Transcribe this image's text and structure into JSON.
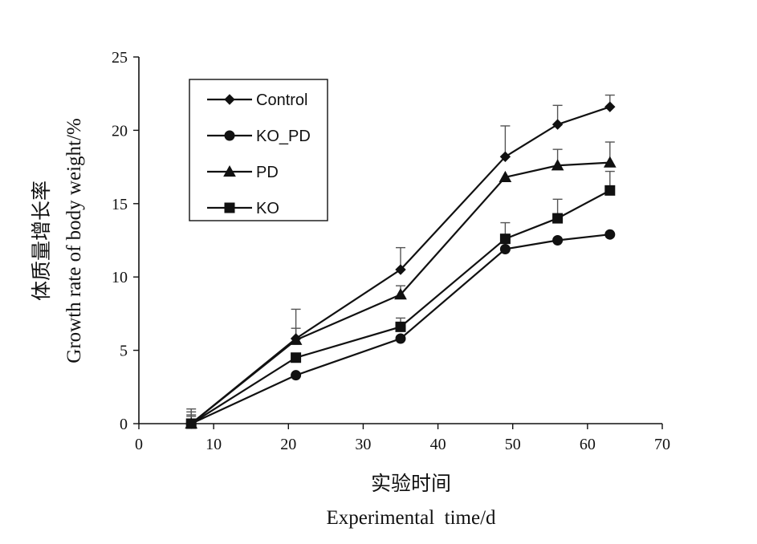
{
  "chart_data": {
    "type": "line",
    "xlabel_cn": "实验时间",
    "xlabel_en": "Experimental  time/d",
    "ylabel_cn": "体质量增长率",
    "ylabel_en": "Growth  rate  of  body  weight/%",
    "xlim": [
      0,
      70
    ],
    "ylim": [
      0,
      25
    ],
    "xticks": [
      0,
      10,
      20,
      30,
      40,
      50,
      60,
      70
    ],
    "yticks": [
      0,
      5,
      10,
      15,
      20,
      25
    ],
    "grid": false,
    "legend_position": "top-left",
    "x": [
      7,
      21,
      35,
      49,
      56,
      63
    ],
    "series": [
      {
        "name": "Control",
        "marker": "diamond",
        "values": [
          0,
          5.8,
          10.5,
          18.2,
          20.4,
          21.6
        ],
        "errors": [
          1.0,
          2.0,
          1.5,
          2.1,
          1.3,
          0.8
        ]
      },
      {
        "name": "KO_PD",
        "marker": "circle",
        "values": [
          0,
          3.3,
          5.8,
          11.9,
          12.5,
          12.9
        ],
        "errors": [
          0.8,
          0.0,
          0.0,
          0.0,
          0.0,
          0.0
        ]
      },
      {
        "name": "PD",
        "marker": "triangle",
        "values": [
          0,
          5.7,
          8.8,
          16.8,
          17.6,
          17.8
        ],
        "errors": [
          0.6,
          0.8,
          0.6,
          0.0,
          1.1,
          1.4
        ]
      },
      {
        "name": "KO",
        "marker": "square",
        "values": [
          0,
          4.5,
          6.6,
          12.6,
          14.0,
          15.9
        ],
        "errors": [
          0.5,
          0.0,
          0.6,
          1.1,
          1.3,
          1.3
        ]
      }
    ]
  }
}
